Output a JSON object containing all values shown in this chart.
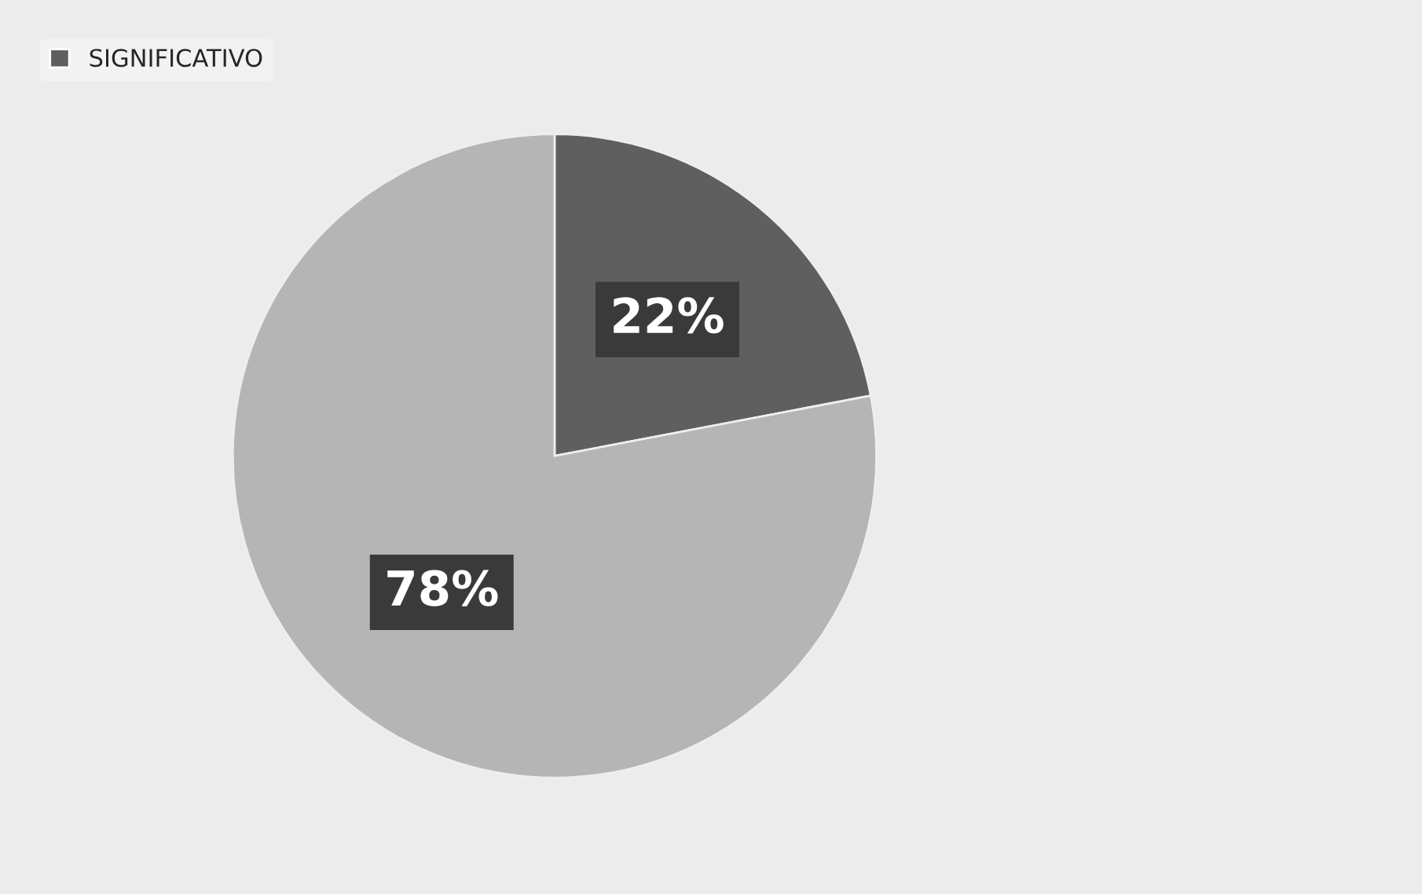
{
  "chart_data": {
    "type": "pie",
    "categories": [
      "SIGNIFICATIVO",
      null
    ],
    "values": [
      22,
      78
    ],
    "colors": [
      "#5f5f5f",
      "#b5b5b5"
    ],
    "value_labels": [
      "22%",
      "78%"
    ],
    "legend": "top left"
  }
}
